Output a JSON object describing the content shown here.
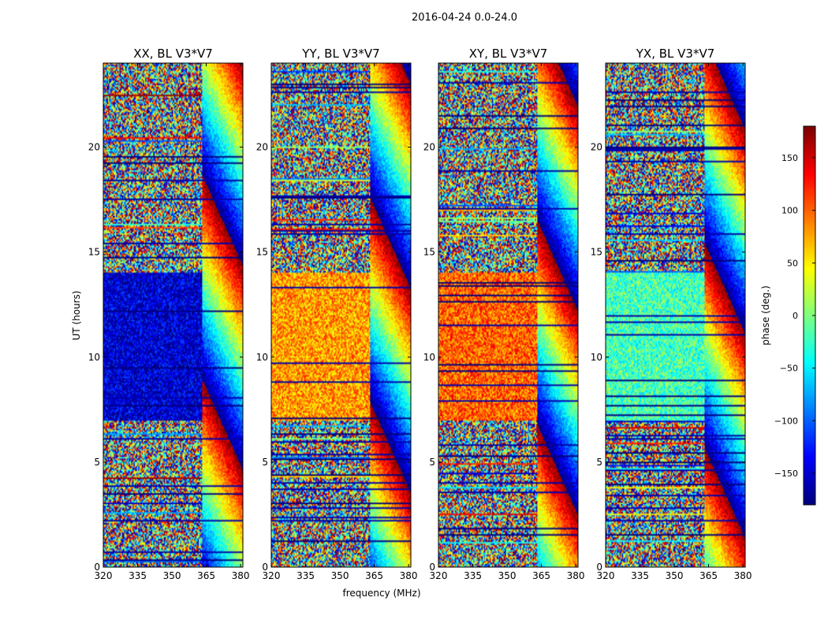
{
  "figure": {
    "suptitle": "2016-04-24 0.0-24.0"
  },
  "chart_data": [
    {
      "type": "heatmap",
      "title": "XX, BL V3*V7",
      "xlabel": "",
      "ylabel": "UT (hours)",
      "xlim": [
        320,
        381
      ],
      "ylim": [
        0,
        24
      ],
      "x_ticks": [
        320,
        335,
        350,
        365,
        380
      ],
      "y_ticks": [
        0,
        5,
        10,
        15,
        20
      ],
      "value": "phase (deg.)",
      "zlim": [
        -180,
        180
      ],
      "low_phase_block_hours": [
        7,
        14
      ],
      "low_phase_block_level": -150
    },
    {
      "type": "heatmap",
      "title": "YY, BL V3*V7",
      "xlabel": "frequency (MHz)",
      "ylabel": "",
      "xlim": [
        320,
        381
      ],
      "ylim": [
        0,
        24
      ],
      "x_ticks": [
        320,
        335,
        350,
        365,
        380
      ],
      "y_ticks": [
        0,
        5,
        10,
        15,
        20
      ],
      "value": "phase (deg.)",
      "zlim": [
        -180,
        180
      ],
      "low_phase_block_hours": [
        7,
        14
      ],
      "low_phase_block_level": 80
    },
    {
      "type": "heatmap",
      "title": "XY, BL V3*V7",
      "xlabel": "",
      "ylabel": "",
      "xlim": [
        320,
        381
      ],
      "ylim": [
        0,
        24
      ],
      "x_ticks": [
        320,
        335,
        350,
        365,
        380
      ],
      "y_ticks": [
        0,
        5,
        10,
        15,
        20
      ],
      "value": "phase (deg.)",
      "zlim": [
        -180,
        180
      ],
      "low_phase_block_hours": [
        7,
        14
      ],
      "low_phase_block_level": 100
    },
    {
      "type": "heatmap",
      "title": "YX, BL V3*V7",
      "xlabel": "",
      "ylabel": "",
      "xlim": [
        320,
        381
      ],
      "ylim": [
        0,
        24
      ],
      "x_ticks": [
        320,
        335,
        350,
        365,
        380
      ],
      "y_ticks": [
        0,
        5,
        10,
        15,
        20
      ],
      "value": "phase (deg.)",
      "zlim": [
        -180,
        180
      ],
      "low_phase_block_hours": [
        7,
        14
      ],
      "low_phase_block_level": -20
    }
  ],
  "colorbar": {
    "label": "phase (deg.)",
    "range": [
      -180,
      180
    ],
    "ticks": [
      150,
      100,
      50,
      0,
      -50,
      -100,
      -150
    ],
    "tick_labels": [
      "150",
      "100",
      "50",
      "0",
      "−50",
      "−100",
      "−150"
    ]
  },
  "colors": {
    "jet_stops": [
      "#00007f",
      "#0000ff",
      "#007fff",
      "#00ffff",
      "#7fff7f",
      "#ffff00",
      "#ff7f00",
      "#ff0000",
      "#7f0000"
    ]
  }
}
